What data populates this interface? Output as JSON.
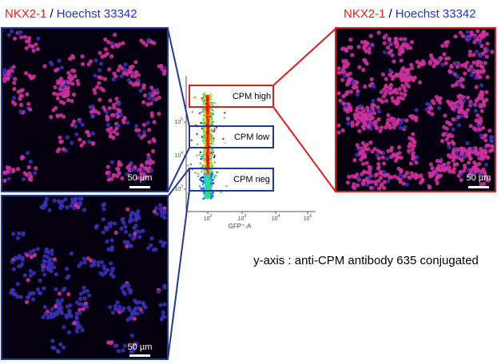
{
  "left_label": {
    "marker": "NKX2-1",
    "separator": "/",
    "stain": "Hoechst 33342"
  },
  "right_label": {
    "marker": "NKX2-1",
    "separator": "/",
    "stain": "Hoechst 33342"
  },
  "scale_bars": [
    "50 µm",
    "50 µm",
    "50 µm"
  ],
  "gates": [
    "CPM high",
    "CPM low",
    "CPM neg"
  ],
  "flow_plot": {
    "x_axis_label": "GFP⁺-A",
    "x_ticks": [
      {
        "base": "10",
        "exp": "2"
      },
      {
        "base": "10",
        "exp": "3"
      },
      {
        "base": "10",
        "exp": "4"
      },
      {
        "base": "10",
        "exp": "5"
      }
    ],
    "y_ticks": [
      {
        "base": "10",
        "exp": "5"
      },
      {
        "base": "10",
        "exp": "4"
      },
      {
        "base": "10",
        "exp": "3"
      }
    ]
  },
  "caption": "y-axis : anti-CPM antibody 635 conjugated"
}
